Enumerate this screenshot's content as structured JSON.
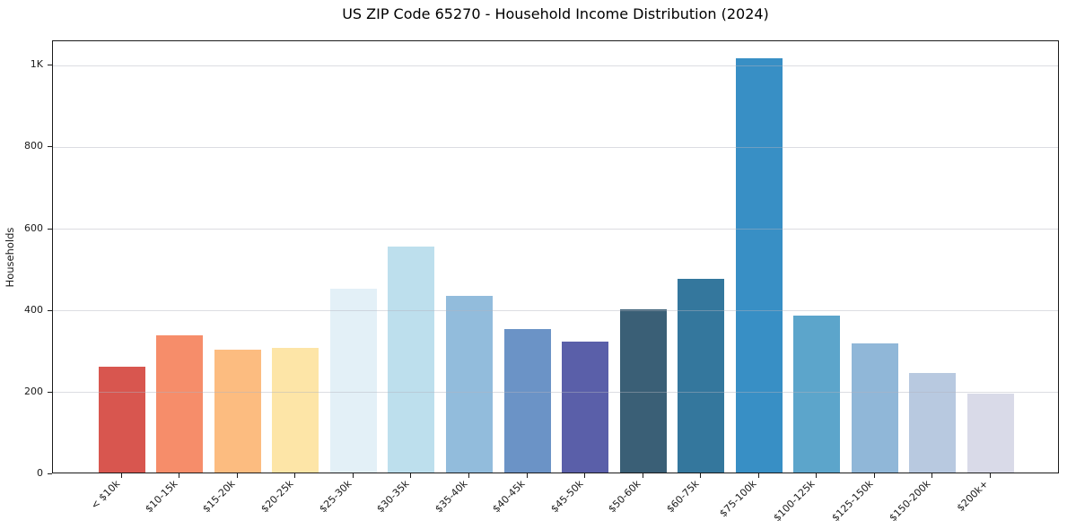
{
  "chart_data": {
    "type": "bar",
    "title": "US ZIP Code 65270 - Household Income Distribution (2024)",
    "xlabel": "",
    "ylabel": "Households",
    "categories": [
      "< $10k",
      "$10-15k",
      "$15-20k",
      "$20-25k",
      "$25-30k",
      "$30-35k",
      "$35-40k",
      "$40-45k",
      "$45-50k",
      "$50-60k",
      "$60-75k",
      "$75-100k",
      "$100-125k",
      "$125-150k",
      "$150-200k",
      "$200k+"
    ],
    "values": [
      260,
      335,
      300,
      305,
      450,
      552,
      432,
      352,
      321,
      400,
      475,
      1015,
      383,
      317,
      243,
      193
    ],
    "bar_colors": [
      "#d8564f",
      "#f68d6a",
      "#fcbc80",
      "#fde5a7",
      "#e3f0f7",
      "#bddfed",
      "#92bcdc",
      "#6b93c6",
      "#5a5fa9",
      "#3a5f76",
      "#34779d",
      "#388fc5",
      "#5ca5cb",
      "#90b7d8",
      "#b8c9e0",
      "#d9dae8"
    ],
    "ylim": [
      0,
      1060
    ],
    "ytick_values": [
      0,
      200,
      400,
      600,
      800,
      1000
    ],
    "ytick_labels": [
      "0",
      "200",
      "400",
      "600",
      "800",
      "1K"
    ],
    "grid": "horizontal",
    "legend": "none",
    "x_label_rotation_deg": 45
  }
}
